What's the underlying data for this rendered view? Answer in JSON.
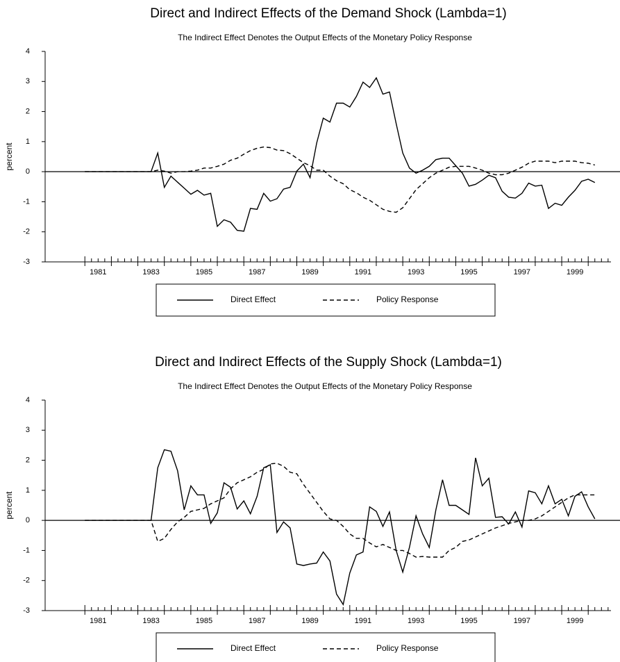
{
  "chart_data": [
    {
      "type": "line",
      "title": "Direct and Indirect Effects of the Demand Shock (Lambda=1)",
      "subtitle": "The Indirect Effect Denotes the Output Effects of the Monetary Policy Response",
      "ylabel": "percent",
      "x": [
        1981,
        1981.25,
        1981.5,
        1981.75,
        1982,
        1982.25,
        1982.5,
        1982.75,
        1983,
        1983.25,
        1983.5,
        1983.75,
        1984,
        1984.25,
        1984.5,
        1984.75,
        1985,
        1985.25,
        1985.5,
        1985.75,
        1986,
        1986.25,
        1986.5,
        1986.75,
        1987,
        1987.25,
        1987.5,
        1987.75,
        1988,
        1988.25,
        1988.5,
        1988.75,
        1989,
        1989.25,
        1989.5,
        1989.75,
        1990,
        1990.25,
        1990.5,
        1990.75,
        1991,
        1991.25,
        1991.5,
        1991.75,
        1992,
        1992.25,
        1992.5,
        1992.75,
        1993,
        1993.25,
        1993.5,
        1993.75,
        1994,
        1994.25,
        1994.5,
        1994.75,
        1995,
        1995.25,
        1995.5,
        1995.75,
        1996,
        1996.25,
        1996.5,
        1996.75,
        1997,
        1997.25,
        1997.5,
        1997.75,
        1998,
        1998.25,
        1998.5,
        1998.75,
        1999,
        1999.25,
        1999.5,
        1999.75,
        2000,
        2000.25
      ],
      "series": [
        {
          "name": "Direct Effect",
          "color": "#000000",
          "linestyle": "solid",
          "values": [
            0,
            0,
            0,
            0,
            0,
            0,
            0,
            0,
            0,
            0,
            0,
            0.62,
            -0.52,
            -0.15,
            -0.35,
            -0.55,
            -0.75,
            -0.62,
            -0.78,
            -0.72,
            -1.82,
            -1.6,
            -1.68,
            -1.95,
            -1.98,
            -1.22,
            -1.25,
            -0.72,
            -0.98,
            -0.9,
            -0.58,
            -0.52,
            0.02,
            0.25,
            -0.2,
            0.95,
            1.78,
            1.65,
            2.28,
            2.28,
            2.15,
            2.5,
            2.98,
            2.8,
            3.12,
            2.58,
            2.65,
            1.6,
            0.62,
            0.12,
            -0.05,
            0.05,
            0.18,
            0.4,
            0.45,
            0.45,
            0.2,
            -0.05,
            -0.48,
            -0.42,
            -0.28,
            -0.12,
            -0.2,
            -0.65,
            -0.85,
            -0.88,
            -0.72,
            -0.38,
            -0.48,
            -0.45,
            -1.22,
            -1.05,
            -1.12,
            -0.85,
            -0.62,
            -0.32,
            -0.25,
            -0.36
          ]
        },
        {
          "name": "Policy Response",
          "color": "#000000",
          "linestyle": "dashed",
          "values": [
            0,
            0,
            0,
            0,
            0,
            0,
            0,
            0,
            0,
            0,
            0,
            0.05,
            0.02,
            -0.05,
            0,
            0,
            0.02,
            0.05,
            0.12,
            0.12,
            0.18,
            0.25,
            0.38,
            0.45,
            0.58,
            0.7,
            0.78,
            0.82,
            0.8,
            0.72,
            0.7,
            0.6,
            0.45,
            0.3,
            0.2,
            0.05,
            0.05,
            -0.15,
            -0.3,
            -0.4,
            -0.6,
            -0.7,
            -0.85,
            -0.95,
            -1.1,
            -1.25,
            -1.32,
            -1.35,
            -1.2,
            -0.9,
            -0.6,
            -0.4,
            -0.2,
            -0.05,
            0.05,
            0.15,
            0.18,
            0.18,
            0.18,
            0.12,
            0.05,
            -0.05,
            -0.1,
            -0.1,
            -0.05,
            0.05,
            0.15,
            0.28,
            0.35,
            0.35,
            0.35,
            0.3,
            0.35,
            0.35,
            0.35,
            0.3,
            0.28,
            0.22
          ]
        }
      ],
      "xlim": [
        1979.5,
        2001.2
      ],
      "ylim": [
        -3,
        4
      ],
      "xticks": [
        1981,
        1983,
        1985,
        1987,
        1989,
        1991,
        1993,
        1995,
        1997,
        1999
      ],
      "yticks": [
        -3,
        -2,
        -1,
        0,
        1,
        2,
        3,
        4
      ]
    },
    {
      "type": "line",
      "title": "Direct and Indirect Effects of the Supply Shock (Lambda=1)",
      "subtitle": "The Indirect Effect Denotes the Output Effects of the Monetary Policy Response",
      "ylabel": "percent",
      "x": [
        1981,
        1981.25,
        1981.5,
        1981.75,
        1982,
        1982.25,
        1982.5,
        1982.75,
        1983,
        1983.25,
        1983.5,
        1983.75,
        1984,
        1984.25,
        1984.5,
        1984.75,
        1985,
        1985.25,
        1985.5,
        1985.75,
        1986,
        1986.25,
        1986.5,
        1986.75,
        1987,
        1987.25,
        1987.5,
        1987.75,
        1988,
        1988.25,
        1988.5,
        1988.75,
        1989,
        1989.25,
        1989.5,
        1989.75,
        1990,
        1990.25,
        1990.5,
        1990.75,
        1991,
        1991.25,
        1991.5,
        1991.75,
        1992,
        1992.25,
        1992.5,
        1992.75,
        1993,
        1993.25,
        1993.5,
        1993.75,
        1994,
        1994.25,
        1994.5,
        1994.75,
        1995,
        1995.25,
        1995.5,
        1995.75,
        1996,
        1996.25,
        1996.5,
        1996.75,
        1997,
        1997.25,
        1997.5,
        1997.75,
        1998,
        1998.25,
        1998.5,
        1998.75,
        1999,
        1999.25,
        1999.5,
        1999.75,
        2000,
        2000.25
      ],
      "series": [
        {
          "name": "Direct Effect",
          "color": "#000000",
          "linestyle": "solid",
          "values": [
            0,
            0,
            0,
            0,
            0,
            0,
            0,
            0,
            0,
            0,
            0,
            1.75,
            2.35,
            2.3,
            1.65,
            0.35,
            1.15,
            0.85,
            0.85,
            -0.1,
            0.25,
            1.25,
            1.1,
            0.38,
            0.65,
            0.22,
            0.8,
            1.75,
            1.85,
            -0.4,
            -0.05,
            -0.25,
            -1.45,
            -1.5,
            -1.45,
            -1.42,
            -1.05,
            -1.35,
            -2.45,
            -2.8,
            -1.75,
            -1.15,
            -1.05,
            0.45,
            0.3,
            -0.2,
            0.28,
            -1.0,
            -1.72,
            -0.9,
            0.15,
            -0.45,
            -0.9,
            0.35,
            1.35,
            0.5,
            0.5,
            0.35,
            0.2,
            2.08,
            1.15,
            1.4,
            0.1,
            0.12,
            -0.12,
            0.28,
            -0.22,
            0.98,
            0.92,
            0.55,
            1.15,
            0.55,
            0.7,
            0.15,
            0.8,
            0.95,
            0.45,
            0.05
          ]
        },
        {
          "name": "Policy Response",
          "color": "#000000",
          "linestyle": "dashed",
          "values": [
            0,
            0,
            0,
            0,
            0,
            0,
            0,
            0,
            0,
            0,
            0,
            -0.7,
            -0.6,
            -0.3,
            -0.05,
            0.1,
            0.3,
            0.35,
            0.4,
            0.55,
            0.65,
            0.75,
            1.05,
            1.25,
            1.35,
            1.45,
            1.6,
            1.7,
            1.88,
            1.9,
            1.8,
            1.6,
            1.55,
            1.2,
            0.9,
            0.6,
            0.3,
            0.05,
            0,
            -0.2,
            -0.45,
            -0.6,
            -0.6,
            -0.75,
            -0.88,
            -0.8,
            -0.9,
            -1.0,
            -1.0,
            -1.1,
            -1.22,
            -1.2,
            -1.22,
            -1.22,
            -1.22,
            -1.0,
            -0.9,
            -0.7,
            -0.65,
            -0.55,
            -0.45,
            -0.35,
            -0.25,
            -0.18,
            -0.1,
            -0.05,
            0,
            0,
            0.05,
            0.15,
            0.3,
            0.45,
            0.6,
            0.75,
            0.85,
            0.85,
            0.85,
            0.85
          ]
        }
      ],
      "xlim": [
        1979.5,
        2001.2
      ],
      "ylim": [
        -3,
        4
      ],
      "xticks": [
        1981,
        1983,
        1985,
        1987,
        1989,
        1991,
        1993,
        1995,
        1997,
        1999
      ],
      "yticks": [
        -3,
        -2,
        -1,
        0,
        1,
        2,
        3,
        4
      ]
    }
  ]
}
